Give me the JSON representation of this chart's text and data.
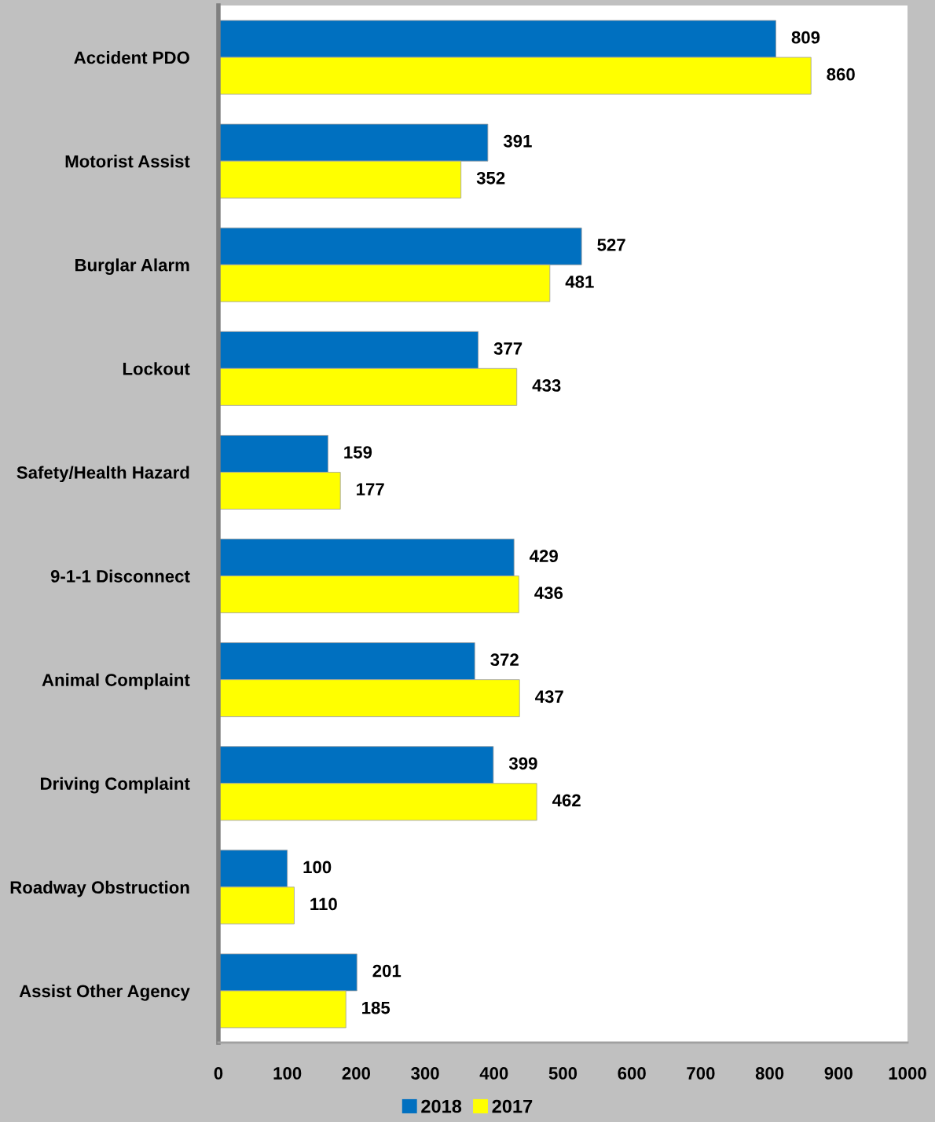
{
  "chart_data": {
    "type": "bar",
    "orientation": "horizontal",
    "categories": [
      "Accident PDO",
      "Motorist Assist",
      "Burglar Alarm",
      "Lockout",
      "Safety/Health Hazard",
      "9-1-1 Disconnect",
      "Animal Complaint",
      "Driving Complaint",
      "Roadway Obstruction",
      "Assist Other Agency"
    ],
    "series": [
      {
        "name": "2018",
        "color": "#0070c0",
        "values": [
          809,
          391,
          527,
          377,
          159,
          429,
          372,
          399,
          100,
          201
        ]
      },
      {
        "name": "2017",
        "color": "#ffff00",
        "values": [
          860,
          352,
          481,
          433,
          177,
          436,
          437,
          462,
          110,
          185
        ]
      }
    ],
    "xlim": [
      0,
      1000
    ],
    "xticks": [
      0,
      100,
      200,
      300,
      400,
      500,
      600,
      700,
      800,
      900,
      1000
    ],
    "data_labels": true,
    "legend": "bottom",
    "grid": false
  }
}
